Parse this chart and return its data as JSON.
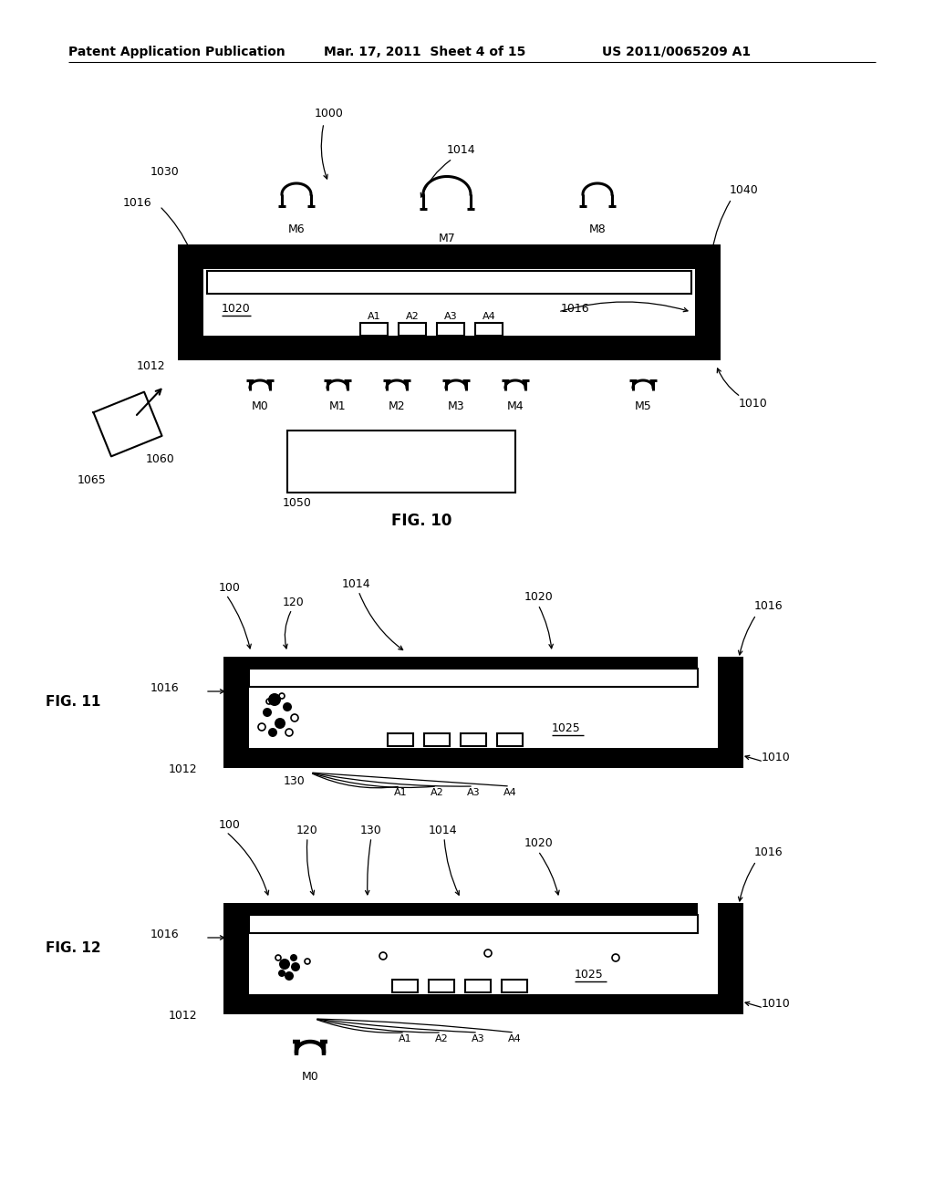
{
  "bg_color": "#ffffff",
  "text_color": "#000000",
  "header_left": "Patent Application Publication",
  "header_mid": "Mar. 17, 2011  Sheet 4 of 15",
  "header_right": "US 2011/0065209 A1",
  "fig10_label": "FIG. 10",
  "fig11_label": "FIG. 11",
  "fig12_label": "FIG. 12"
}
